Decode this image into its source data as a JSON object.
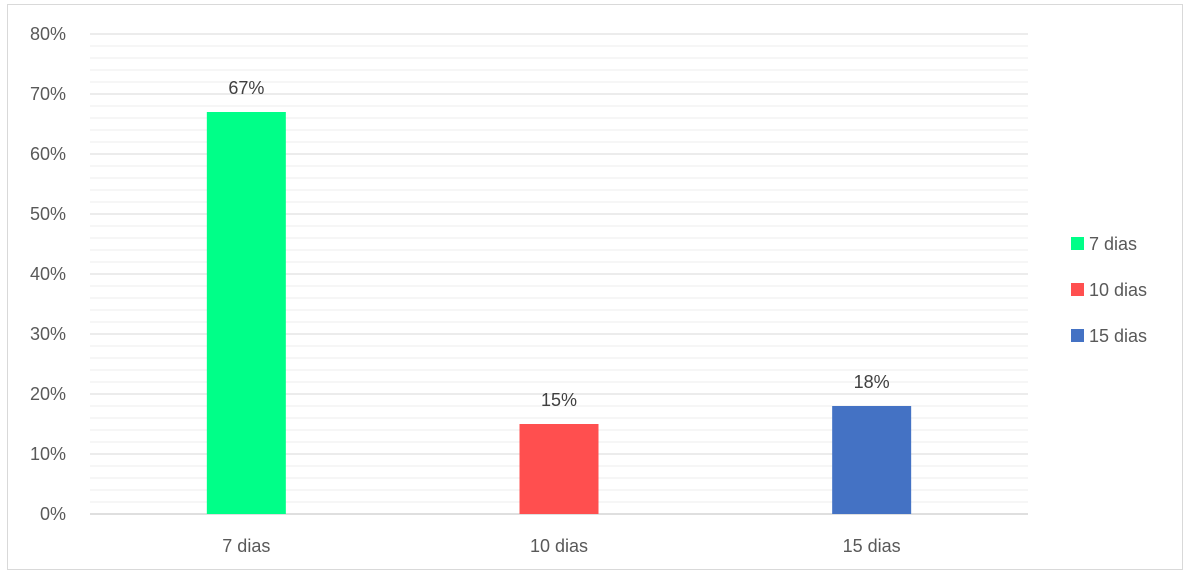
{
  "chart_data": {
    "type": "bar",
    "categories": [
      "7 dias",
      "10 dias",
      "15 dias"
    ],
    "values": [
      67,
      15,
      18
    ],
    "data_labels": [
      "67%",
      "15%",
      "18%"
    ],
    "colors": [
      "#00FF88",
      "#FF4F4F",
      "#4472C4"
    ],
    "yticks": [
      "0%",
      "10%",
      "20%",
      "30%",
      "40%",
      "50%",
      "60%",
      "70%",
      "80%"
    ],
    "ylim": [
      0,
      80
    ],
    "minor_grid_step": 2,
    "legend": {
      "position": "right",
      "entries": [
        "7 dias",
        "10 dias",
        "15 dias"
      ]
    },
    "grid": true
  }
}
